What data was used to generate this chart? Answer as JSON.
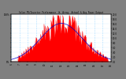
{
  "title": "Solar PV/Inverter Performance  W. Array  Actual & Avg Power Output",
  "bg_color": "#808080",
  "plot_bg": "#ffffff",
  "actual_color": "#ff0000",
  "avg_color": "#0000cc",
  "avg_color2": "#cc0000",
  "grid_color": "#aaddff",
  "ylim": [
    0,
    20
  ],
  "n_points": 144,
  "peak_hour": 72,
  "peak_value": 17.0,
  "sigma": 30,
  "figwidth": 1.6,
  "figheight": 1.0,
  "dpi": 100
}
